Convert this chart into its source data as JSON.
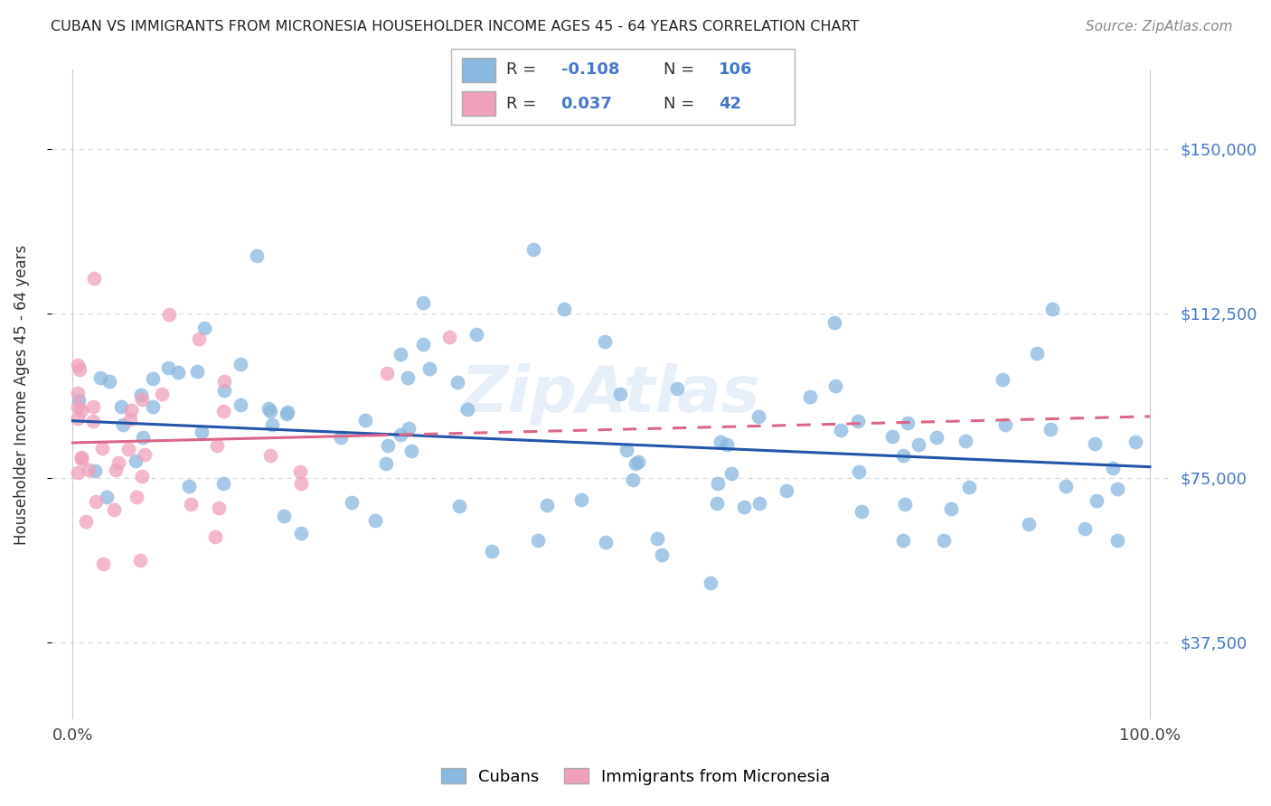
{
  "title": "CUBAN VS IMMIGRANTS FROM MICRONESIA HOUSEHOLDER INCOME AGES 45 - 64 YEARS CORRELATION CHART",
  "source": "Source: ZipAtlas.com",
  "ylabel": "Householder Income Ages 45 - 64 years",
  "xlim": [
    -2,
    102
  ],
  "ylim": [
    20000,
    168000
  ],
  "yticks": [
    37500,
    75000,
    112500,
    150000
  ],
  "ytick_labels": [
    "$37,500",
    "$75,000",
    "$112,500",
    "$150,000"
  ],
  "xtick_labels": [
    "0.0%",
    "100.0%"
  ],
  "blue_color": "#89b8e0",
  "pink_color": "#f0a0bc",
  "blue_line_color": "#2255aa",
  "pink_line_color": "#dd6688",
  "background_color": "#ffffff",
  "grid_color": "#d8d8d8",
  "watermark": "ZipAtlas",
  "blue_trend_x0": 0,
  "blue_trend_x1": 100,
  "blue_trend_y0": 88000,
  "blue_trend_y1": 77500,
  "pink_trend_x0": 0,
  "pink_trend_x1": 100,
  "pink_trend_y0": 83000,
  "pink_trend_y1": 89000,
  "pink_solid_x0": 0,
  "pink_solid_x1": 28,
  "cubans_seed": 42,
  "micro_seed": 99
}
